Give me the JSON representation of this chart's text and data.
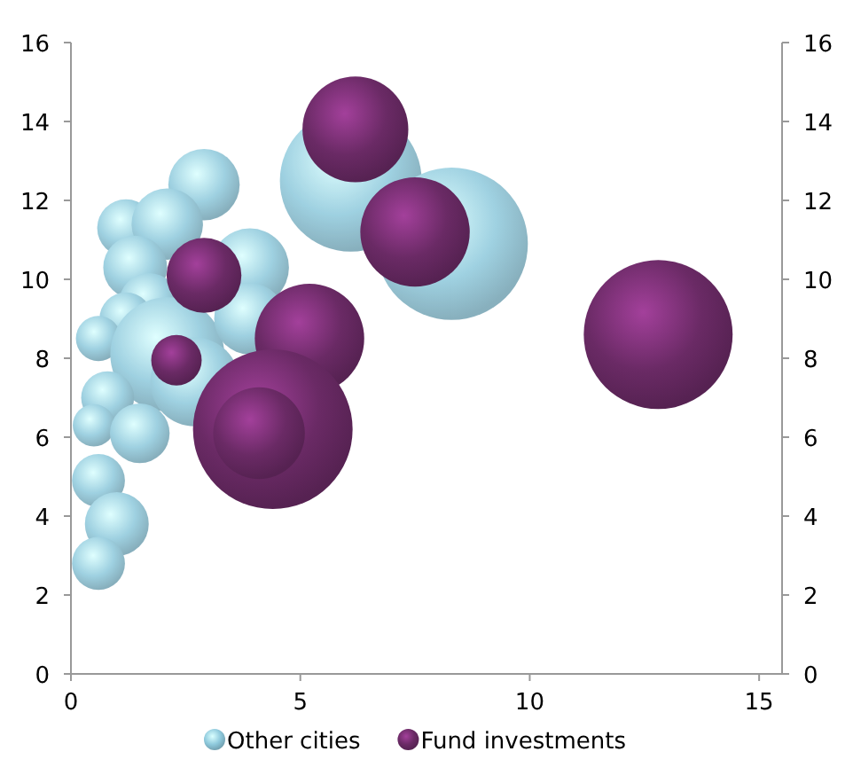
{
  "chart_data": {
    "type": "bubble",
    "xlim": [
      0,
      15.5
    ],
    "xticks": [
      0,
      5,
      10,
      15
    ],
    "ylim": [
      0,
      16
    ],
    "yticks": [
      0,
      2,
      4,
      6,
      8,
      10,
      12,
      14,
      16
    ],
    "y2lim": [
      0,
      16
    ],
    "y2ticks": [
      0,
      2,
      4,
      6,
      8,
      10,
      12,
      14,
      16
    ],
    "legend": "bottom",
    "grid": false,
    "series": [
      {
        "name": "Other cities",
        "color": "#8ec9dc",
        "x": [
          2.9,
          6.1,
          8.3,
          1.2,
          2.1,
          1.4,
          3.9,
          1.7,
          1.2,
          0.6,
          2.1,
          2.7,
          0.8,
          0.5,
          1.5,
          0.6,
          1.0,
          0.6,
          3.9
        ],
        "values": [
          12.4,
          12.5,
          10.9,
          11.3,
          11.4,
          10.3,
          10.3,
          9.4,
          9.0,
          8.5,
          8.1,
          7.4,
          7.0,
          6.3,
          6.1,
          4.9,
          3.8,
          2.8,
          9.0
        ],
        "sizes": [
          0.2,
          0.79,
          0.91,
          0.13,
          0.2,
          0.16,
          0.24,
          0.14,
          0.11,
          0.08,
          0.51,
          0.31,
          0.11,
          0.07,
          0.14,
          0.11,
          0.16,
          0.11,
          0.2
        ]
      },
      {
        "name": "Fund investments",
        "color": "#6a2a65",
        "x": [
          6.2,
          7.5,
          12.8,
          2.9,
          5.2,
          2.3,
          4.4,
          4.1
        ],
        "values": [
          13.8,
          11.2,
          8.6,
          10.1,
          8.5,
          7.95,
          6.2,
          6.1
        ],
        "sizes": [
          0.44,
          0.47,
          0.87,
          0.22,
          0.47,
          0.1,
          1,
          0.33
        ]
      }
    ]
  }
}
